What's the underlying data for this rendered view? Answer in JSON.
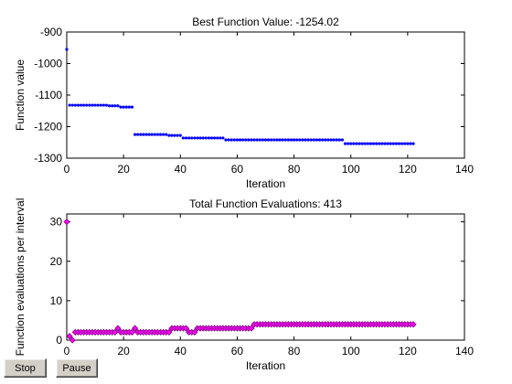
{
  "buttons": {
    "stop_label": "Stop",
    "pause_label": "Pause"
  },
  "chart_data": [
    {
      "type": "line",
      "title": "Best Function Value: -1254.02",
      "xlabel": "Iteration",
      "ylabel": "Function value",
      "xlim": [
        0,
        140
      ],
      "ylim": [
        -1300,
        -900
      ],
      "xticks": [
        0,
        20,
        40,
        60,
        80,
        100,
        120,
        140
      ],
      "yticks": [
        -1300,
        -1200,
        -1100,
        -1000,
        -900
      ],
      "marker": "dot",
      "color": "#0000ff",
      "segments": [
        {
          "x_start": 0,
          "x_end": 0,
          "y": -955
        },
        {
          "x_start": 1,
          "x_end": 14,
          "y": -1132
        },
        {
          "x_start": 15,
          "x_end": 18,
          "y": -1134
        },
        {
          "x_start": 19,
          "x_end": 23,
          "y": -1138
        },
        {
          "x_start": 24,
          "x_end": 35,
          "y": -1225
        },
        {
          "x_start": 36,
          "x_end": 40,
          "y": -1228
        },
        {
          "x_start": 41,
          "x_end": 55,
          "y": -1236
        },
        {
          "x_start": 56,
          "x_end": 97,
          "y": -1242
        },
        {
          "x_start": 98,
          "x_end": 122,
          "y": -1254
        }
      ]
    },
    {
      "type": "line",
      "title": "Total Function Evaluations: 413",
      "xlabel": "Iteration",
      "ylabel": "Function evaluations per interval",
      "xlim": [
        0,
        140
      ],
      "ylim": [
        0,
        32
      ],
      "xticks": [
        0,
        20,
        40,
        60,
        80,
        100,
        120,
        140
      ],
      "yticks": [
        0,
        10,
        20,
        30
      ],
      "marker": "diamond",
      "color": "#ff00ff",
      "edge_color": "#800080",
      "points": [
        [
          0,
          30
        ],
        [
          1,
          1
        ],
        [
          2,
          0
        ],
        [
          3,
          2
        ],
        [
          4,
          2
        ],
        [
          5,
          2
        ],
        [
          6,
          2
        ],
        [
          7,
          2
        ],
        [
          8,
          2
        ],
        [
          9,
          2
        ],
        [
          10,
          2
        ],
        [
          11,
          2
        ],
        [
          12,
          2
        ],
        [
          13,
          2
        ],
        [
          14,
          2
        ],
        [
          15,
          2
        ],
        [
          16,
          2
        ],
        [
          17,
          2
        ],
        [
          18,
          3
        ],
        [
          19,
          2
        ],
        [
          20,
          2
        ],
        [
          21,
          2
        ],
        [
          22,
          2
        ],
        [
          23,
          2
        ],
        [
          24,
          3
        ],
        [
          25,
          2
        ],
        [
          26,
          2
        ],
        [
          27,
          2
        ],
        [
          28,
          2
        ],
        [
          29,
          2
        ],
        [
          30,
          2
        ],
        [
          31,
          2
        ],
        [
          32,
          2
        ],
        [
          33,
          2
        ],
        [
          34,
          2
        ],
        [
          35,
          2
        ],
        [
          36,
          2
        ],
        [
          37,
          3
        ],
        [
          38,
          3
        ],
        [
          39,
          3
        ],
        [
          40,
          3
        ],
        [
          41,
          3
        ],
        [
          42,
          3
        ],
        [
          43,
          2
        ],
        [
          44,
          2
        ],
        [
          45,
          2
        ],
        [
          46,
          3
        ],
        [
          47,
          3
        ],
        [
          48,
          3
        ],
        [
          49,
          3
        ],
        [
          50,
          3
        ],
        [
          51,
          3
        ],
        [
          52,
          3
        ],
        [
          53,
          3
        ],
        [
          54,
          3
        ],
        [
          55,
          3
        ],
        [
          56,
          3
        ],
        [
          57,
          3
        ],
        [
          58,
          3
        ],
        [
          59,
          3
        ],
        [
          60,
          3
        ],
        [
          61,
          3
        ],
        [
          62,
          3
        ],
        [
          63,
          3
        ],
        [
          64,
          3
        ],
        [
          65,
          3
        ],
        [
          66,
          4
        ],
        [
          67,
          4
        ],
        [
          68,
          4
        ],
        [
          69,
          4
        ],
        [
          70,
          4
        ],
        [
          71,
          4
        ],
        [
          72,
          4
        ],
        [
          73,
          4
        ],
        [
          74,
          4
        ],
        [
          75,
          4
        ],
        [
          76,
          4
        ],
        [
          77,
          4
        ],
        [
          78,
          4
        ],
        [
          79,
          4
        ],
        [
          80,
          4
        ],
        [
          81,
          4
        ],
        [
          82,
          4
        ],
        [
          83,
          4
        ],
        [
          84,
          4
        ],
        [
          85,
          4
        ],
        [
          86,
          4
        ],
        [
          87,
          4
        ],
        [
          88,
          4
        ],
        [
          89,
          4
        ],
        [
          90,
          4
        ],
        [
          91,
          4
        ],
        [
          92,
          4
        ],
        [
          93,
          4
        ],
        [
          94,
          4
        ],
        [
          95,
          4
        ],
        [
          96,
          4
        ],
        [
          97,
          4
        ],
        [
          98,
          4
        ],
        [
          99,
          4
        ],
        [
          100,
          4
        ],
        [
          101,
          4
        ],
        [
          102,
          4
        ],
        [
          103,
          4
        ],
        [
          104,
          4
        ],
        [
          105,
          4
        ],
        [
          106,
          4
        ],
        [
          107,
          4
        ],
        [
          108,
          4
        ],
        [
          109,
          4
        ],
        [
          110,
          4
        ],
        [
          111,
          4
        ],
        [
          112,
          4
        ],
        [
          113,
          4
        ],
        [
          114,
          4
        ],
        [
          115,
          4
        ],
        [
          116,
          4
        ],
        [
          117,
          4
        ],
        [
          118,
          4
        ],
        [
          119,
          4
        ],
        [
          120,
          4
        ],
        [
          121,
          4
        ],
        [
          122,
          4
        ]
      ]
    }
  ]
}
